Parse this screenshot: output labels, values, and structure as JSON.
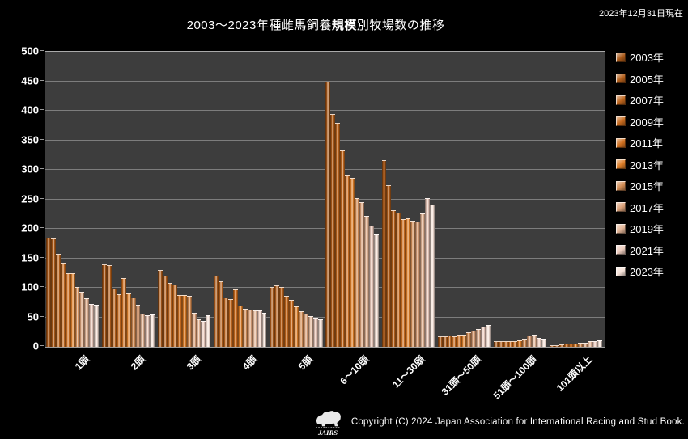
{
  "header": {
    "title_prefix": "2003〜2023年種雌馬飼養",
    "title_bold": "規模",
    "title_suffix": "別牧場数の推移",
    "date_note": "2023年12月31日現在"
  },
  "footer": {
    "copyright": "Copyright (C) 2024 Japan Association for International Racing and Stud Book.",
    "logo_text": "JAIRS"
  },
  "chart_data": {
    "type": "bar",
    "title": "2003〜2023年種雌馬飼養規模別牧場数の推移",
    "xlabel": "",
    "ylabel": "",
    "ylim": [
      0,
      500
    ],
    "ytick_step": 50,
    "y_tick_labels": [
      0,
      50,
      100,
      150,
      200,
      250,
      300,
      350,
      400,
      450,
      500
    ],
    "grid": true,
    "legend_position": "right",
    "plot_bg": "#3d3d3d",
    "page_bg": "#000000",
    "categories": [
      "1頭",
      "2頭",
      "3頭",
      "4頭",
      "5頭",
      "6〜10頭",
      "11〜30頭",
      "31頭〜50頭",
      "51頭〜100頭",
      "101頭以上"
    ],
    "series": [
      {
        "name": "2003年",
        "color": "#a85818",
        "values": [
          185,
          140,
          130,
          121,
          101,
          450,
          316,
          18,
          9,
          3
        ]
      },
      {
        "name": "2005年",
        "color": "#b25e1a",
        "values": [
          183,
          138,
          120,
          111,
          104,
          394,
          274,
          18,
          9,
          3
        ]
      },
      {
        "name": "2007年",
        "color": "#bc641c",
        "values": [
          158,
          98,
          108,
          84,
          101,
          379,
          232,
          19,
          10,
          4
        ]
      },
      {
        "name": "2009年",
        "color": "#c66a1e",
        "values": [
          143,
          89,
          105,
          81,
          87,
          333,
          228,
          18,
          10,
          5
        ]
      },
      {
        "name": "2011年",
        "color": "#d07020",
        "values": [
          125,
          116,
          88,
          97,
          80,
          291,
          216,
          21,
          9,
          6
        ]
      },
      {
        "name": "2013年",
        "color": "#de7e28",
        "values": [
          124,
          90,
          88,
          70,
          68,
          286,
          218,
          20,
          11,
          6
        ]
      },
      {
        "name": "2015年",
        "color": "#d28c54",
        "values": [
          102,
          84,
          87,
          64,
          60,
          252,
          214,
          24,
          14,
          7
        ]
      },
      {
        "name": "2017年",
        "color": "#daa078",
        "values": [
          93,
          71,
          58,
          63,
          56,
          245,
          212,
          28,
          19,
          7
        ]
      },
      {
        "name": "2019年",
        "color": "#e4b698",
        "values": [
          82,
          56,
          47,
          62,
          52,
          222,
          226,
          30,
          21,
          9
        ]
      },
      {
        "name": "2021年",
        "color": "#edccbe",
        "values": [
          72,
          54,
          44,
          62,
          50,
          206,
          252,
          34,
          15,
          10
        ]
      },
      {
        "name": "2023年",
        "color": "#f6e2d8",
        "values": [
          71,
          55,
          53,
          58,
          47,
          190,
          241,
          37,
          14,
          11
        ]
      }
    ]
  }
}
